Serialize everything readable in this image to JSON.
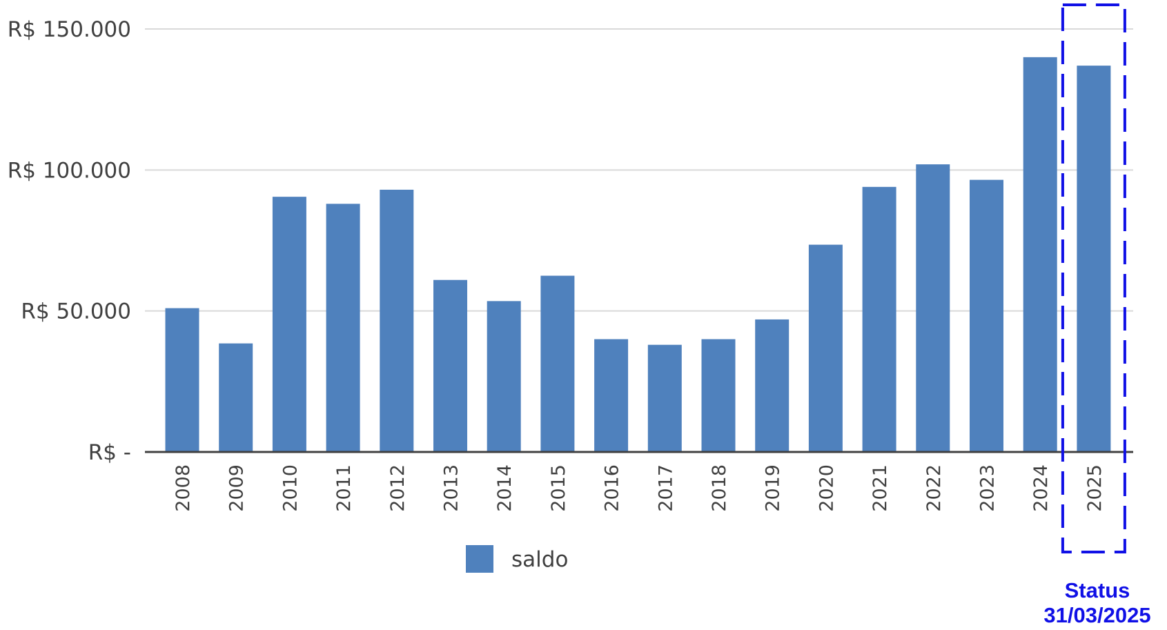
{
  "chart_data": {
    "type": "bar",
    "categories": [
      "2008",
      "2009",
      "2010",
      "2011",
      "2012",
      "2013",
      "2014",
      "2015",
      "2016",
      "2017",
      "2018",
      "2019",
      "2020",
      "2021",
      "2022",
      "2023",
      "2024",
      "2025"
    ],
    "series": [
      {
        "name": "saldo",
        "color": "#4f81bd",
        "values": [
          51000,
          38500,
          90500,
          88000,
          93000,
          61000,
          53500,
          62500,
          40000,
          38000,
          40000,
          47000,
          73500,
          94000,
          102000,
          96500,
          140000,
          137000
        ]
      }
    ],
    "ylim": [
      0,
      150000
    ],
    "yticks": [
      0,
      50000,
      100000,
      150000
    ],
    "ytick_labels": [
      "R$ -",
      "R$ 50.000",
      "R$ 100.000",
      "R$ 150.000"
    ],
    "xlabel": "",
    "ylabel": "",
    "grid": true,
    "legend": {
      "label": "saldo",
      "placement": "bottom"
    },
    "highlight": {
      "category": "2025",
      "style": "dashed box",
      "color": "#1010e6",
      "lines": [
        "Status",
        "31/03/2025"
      ]
    }
  }
}
